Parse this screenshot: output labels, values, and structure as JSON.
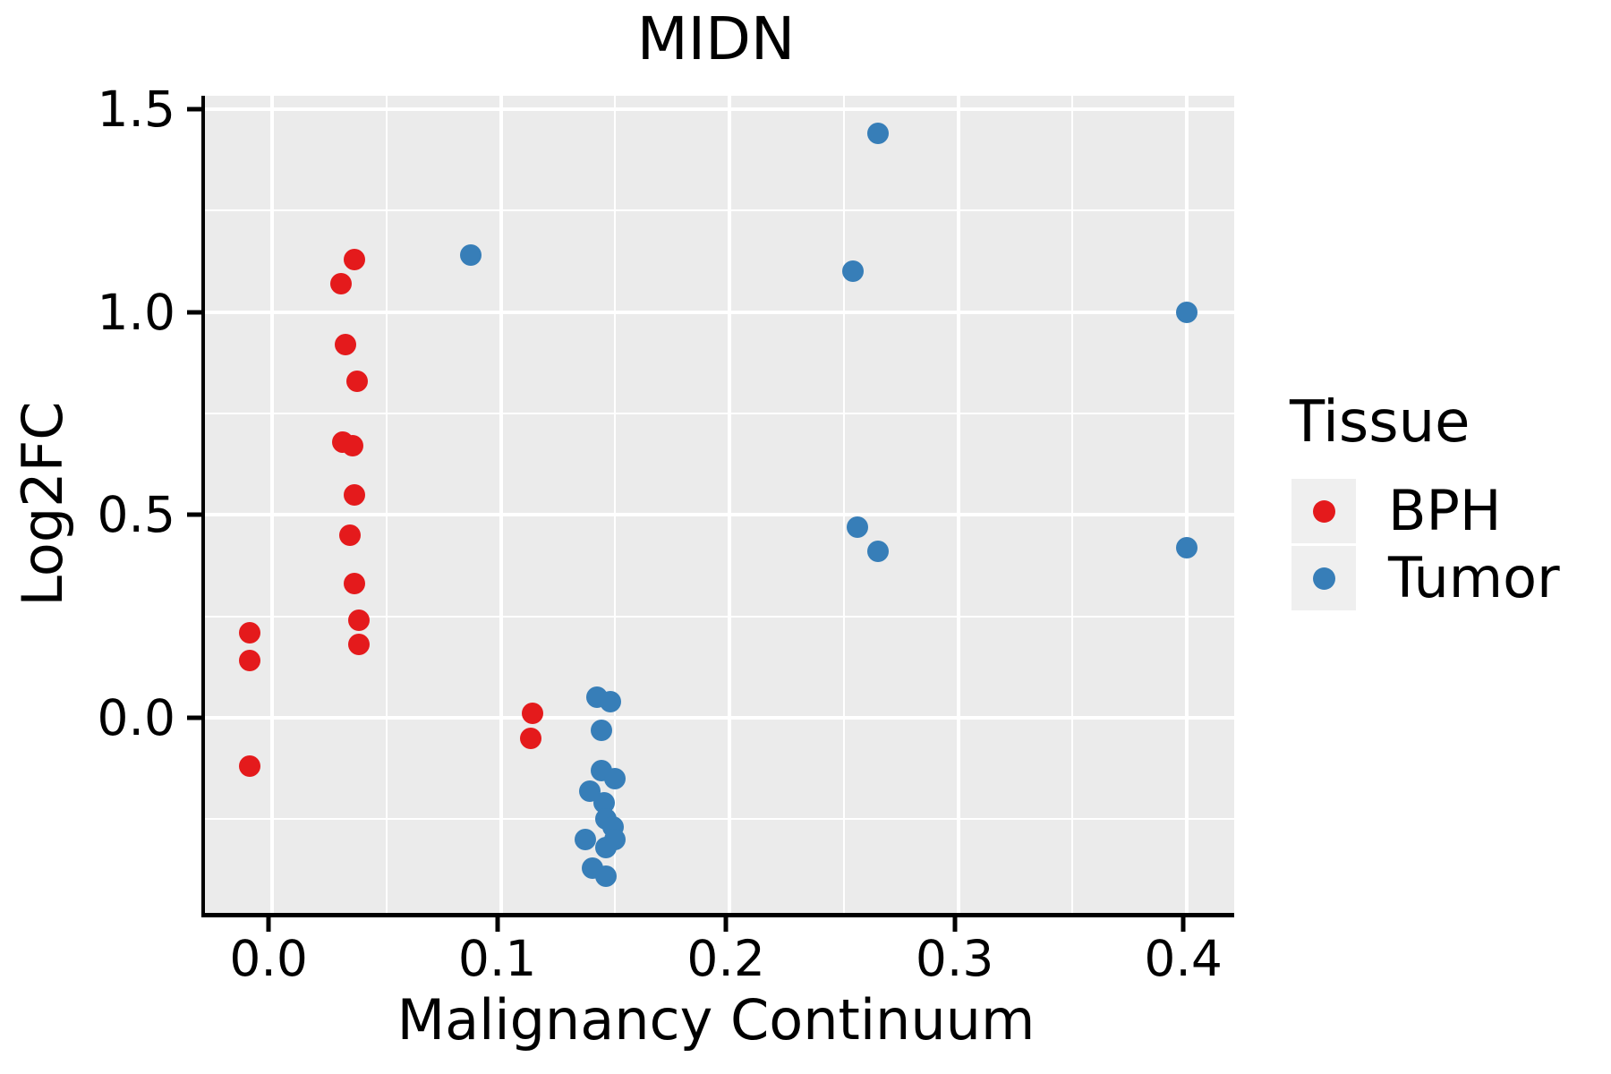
{
  "title": "MIDN",
  "legend": {
    "title": "Tissue",
    "items": [
      {
        "label": "BPH",
        "color": "#e41a1c"
      },
      {
        "label": "Tumor",
        "color": "#377eb8"
      }
    ]
  },
  "colors": {
    "bph": "#e41a1c",
    "tumor": "#377eb8",
    "panel_background": "#ebebeb",
    "gridline": "#ffffff",
    "axis": "#000000"
  },
  "chart_data": {
    "type": "scatter",
    "title": "MIDN",
    "xlabel": "Malignancy Continuum",
    "ylabel": "Log2FC",
    "xlim": [
      -0.0294,
      0.4207
    ],
    "ylim": [
      -0.481,
      1.533
    ],
    "xticks": [
      0.0,
      0.1,
      0.2,
      0.3,
      0.4
    ],
    "yticks": [
      0.0,
      0.5,
      1.0,
      1.5
    ],
    "x_minor_gridlines": [
      0.05,
      0.15,
      0.25,
      0.35
    ],
    "y_minor_gridlines": [
      -0.25,
      0.25,
      0.75,
      1.25
    ],
    "grid": true,
    "legend_position": "right",
    "series": [
      {
        "name": "BPH",
        "color": "#e41a1c",
        "points": [
          [
            -0.01,
            0.21
          ],
          [
            -0.01,
            0.14
          ],
          [
            -0.01,
            -0.12
          ],
          [
            0.036,
            1.13
          ],
          [
            0.03,
            1.07
          ],
          [
            0.032,
            0.92
          ],
          [
            0.037,
            0.83
          ],
          [
            0.031,
            0.68
          ],
          [
            0.035,
            0.67
          ],
          [
            0.036,
            0.55
          ],
          [
            0.034,
            0.45
          ],
          [
            0.036,
            0.33
          ],
          [
            0.038,
            0.24
          ],
          [
            0.038,
            0.18
          ],
          [
            0.114,
            0.01
          ],
          [
            0.113,
            -0.05
          ]
        ]
      },
      {
        "name": "Tumor",
        "color": "#377eb8",
        "points": [
          [
            0.087,
            1.14
          ],
          [
            0.265,
            1.44
          ],
          [
            0.254,
            1.1
          ],
          [
            0.256,
            0.47
          ],
          [
            0.265,
            0.41
          ],
          [
            0.4,
            1.0
          ],
          [
            0.4,
            0.42
          ],
          [
            0.142,
            0.05
          ],
          [
            0.148,
            0.04
          ],
          [
            0.144,
            -0.03
          ],
          [
            0.144,
            -0.13
          ],
          [
            0.15,
            -0.15
          ],
          [
            0.139,
            -0.18
          ],
          [
            0.145,
            -0.21
          ],
          [
            0.146,
            -0.25
          ],
          [
            0.149,
            -0.27
          ],
          [
            0.137,
            -0.3
          ],
          [
            0.15,
            -0.3
          ],
          [
            0.146,
            -0.32
          ],
          [
            0.14,
            -0.37
          ],
          [
            0.146,
            -0.39
          ]
        ]
      }
    ]
  }
}
